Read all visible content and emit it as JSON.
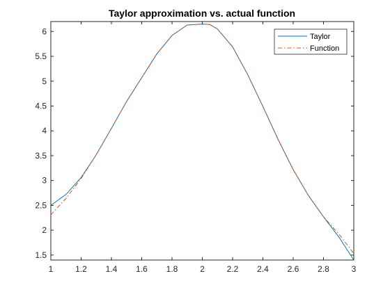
{
  "chart_data": {
    "type": "line",
    "title": "Taylor approximation vs. actual function",
    "xlabel": "",
    "ylabel": "",
    "xlim": [
      1,
      3
    ],
    "ylim": [
      1.4,
      6.2
    ],
    "xticks": [
      1,
      1.2,
      1.4,
      1.6,
      1.8,
      2,
      2.2,
      2.4,
      2.6,
      2.8,
      3
    ],
    "xtick_labels": [
      "1",
      "1.2",
      "1.4",
      "1.6",
      "1.8",
      "2",
      "2.2",
      "2.4",
      "2.6",
      "2.8",
      "3"
    ],
    "yticks": [
      1.5,
      2,
      2.5,
      3,
      3.5,
      4,
      4.5,
      5,
      5.5,
      6
    ],
    "ytick_labels": [
      "1.5",
      "2",
      "2.5",
      "3",
      "3.5",
      "4",
      "4.5",
      "5",
      "5.5",
      "6"
    ],
    "grid": false,
    "legend_position": "top-right",
    "x": [
      1.0,
      1.1,
      1.2,
      1.3,
      1.4,
      1.5,
      1.6,
      1.7,
      1.8,
      1.9,
      2.0,
      2.05,
      2.1,
      2.2,
      2.3,
      2.4,
      2.5,
      2.6,
      2.7,
      2.8,
      2.9,
      3.0
    ],
    "series": [
      {
        "name": "Taylor",
        "color": "#0072BD",
        "line_style": "solid",
        "values": [
          2.5,
          2.72,
          3.06,
          3.52,
          4.05,
          4.59,
          5.07,
          5.55,
          5.92,
          6.13,
          6.15,
          6.14,
          6.05,
          5.69,
          5.13,
          4.49,
          3.83,
          3.22,
          2.7,
          2.27,
          1.87,
          1.4
        ]
      },
      {
        "name": "Function",
        "color": "#D95319",
        "line_style": "dash-dot",
        "values": [
          2.31,
          2.64,
          3.04,
          3.52,
          4.05,
          4.59,
          5.07,
          5.55,
          5.92,
          6.13,
          6.15,
          6.14,
          6.05,
          5.69,
          5.13,
          4.49,
          3.83,
          3.22,
          2.7,
          2.27,
          1.93,
          1.53
        ]
      }
    ]
  }
}
